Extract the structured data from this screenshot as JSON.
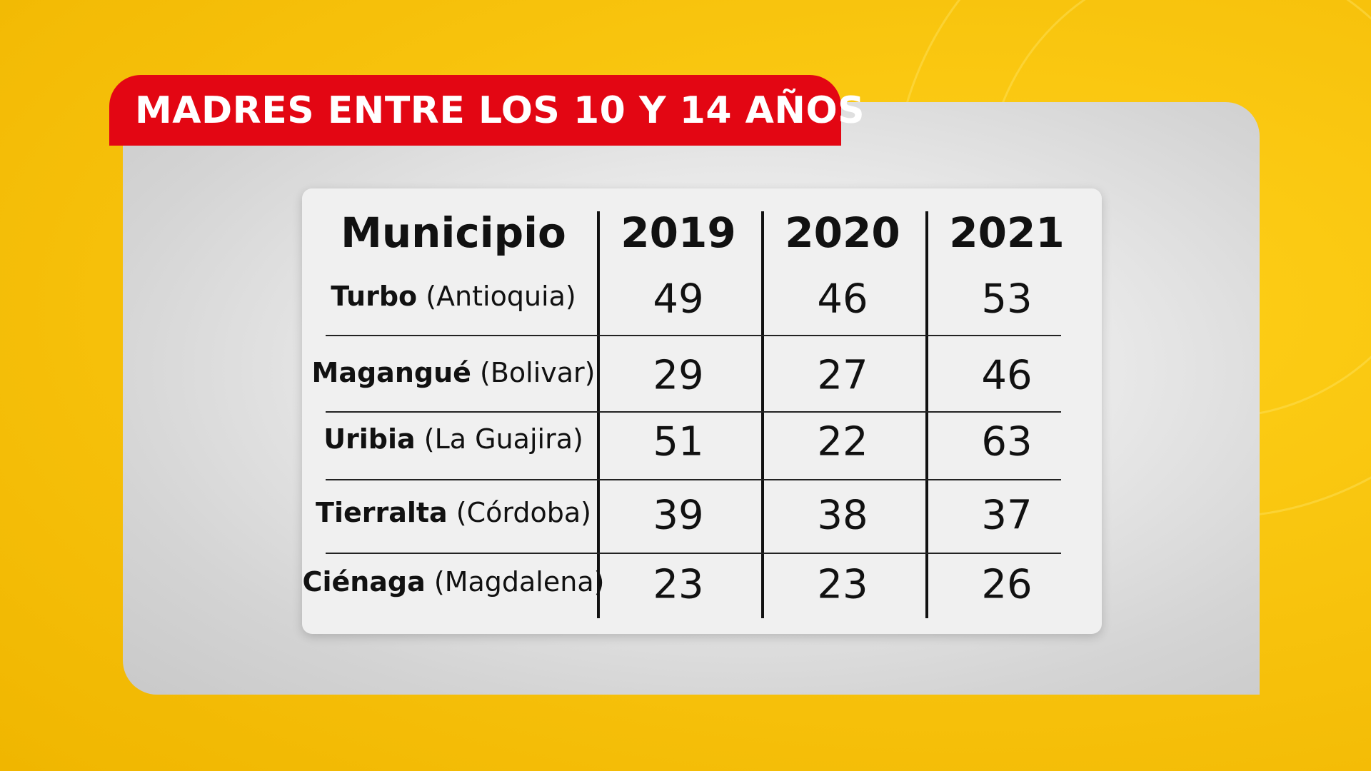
{
  "title": "MADRES ENTRE LOS 10 Y 14 AÑOS",
  "colors": {
    "background": "#f7c20c",
    "title_bar": "#e30613",
    "title_text": "#ffffff",
    "card": "#f0f0f0",
    "text": "#111111"
  },
  "chart_data": {
    "type": "table",
    "columns": [
      "Municipio",
      "2019",
      "2020",
      "2021"
    ],
    "rows": [
      {
        "municipio": "Turbo",
        "departamento": "(Antioquia)",
        "values": [
          49,
          46,
          53
        ]
      },
      {
        "municipio": "Magangué",
        "departamento": "(Bolivar)",
        "values": [
          29,
          27,
          46
        ]
      },
      {
        "municipio": "Uribia",
        "departamento": "(La Guajira)",
        "values": [
          51,
          22,
          63
        ]
      },
      {
        "municipio": "Tierralta",
        "departamento": "(Córdoba)",
        "values": [
          39,
          38,
          37
        ]
      },
      {
        "municipio": "Ciénaga",
        "departamento": "(Magdalena)",
        "values": [
          23,
          23,
          26
        ]
      }
    ]
  }
}
